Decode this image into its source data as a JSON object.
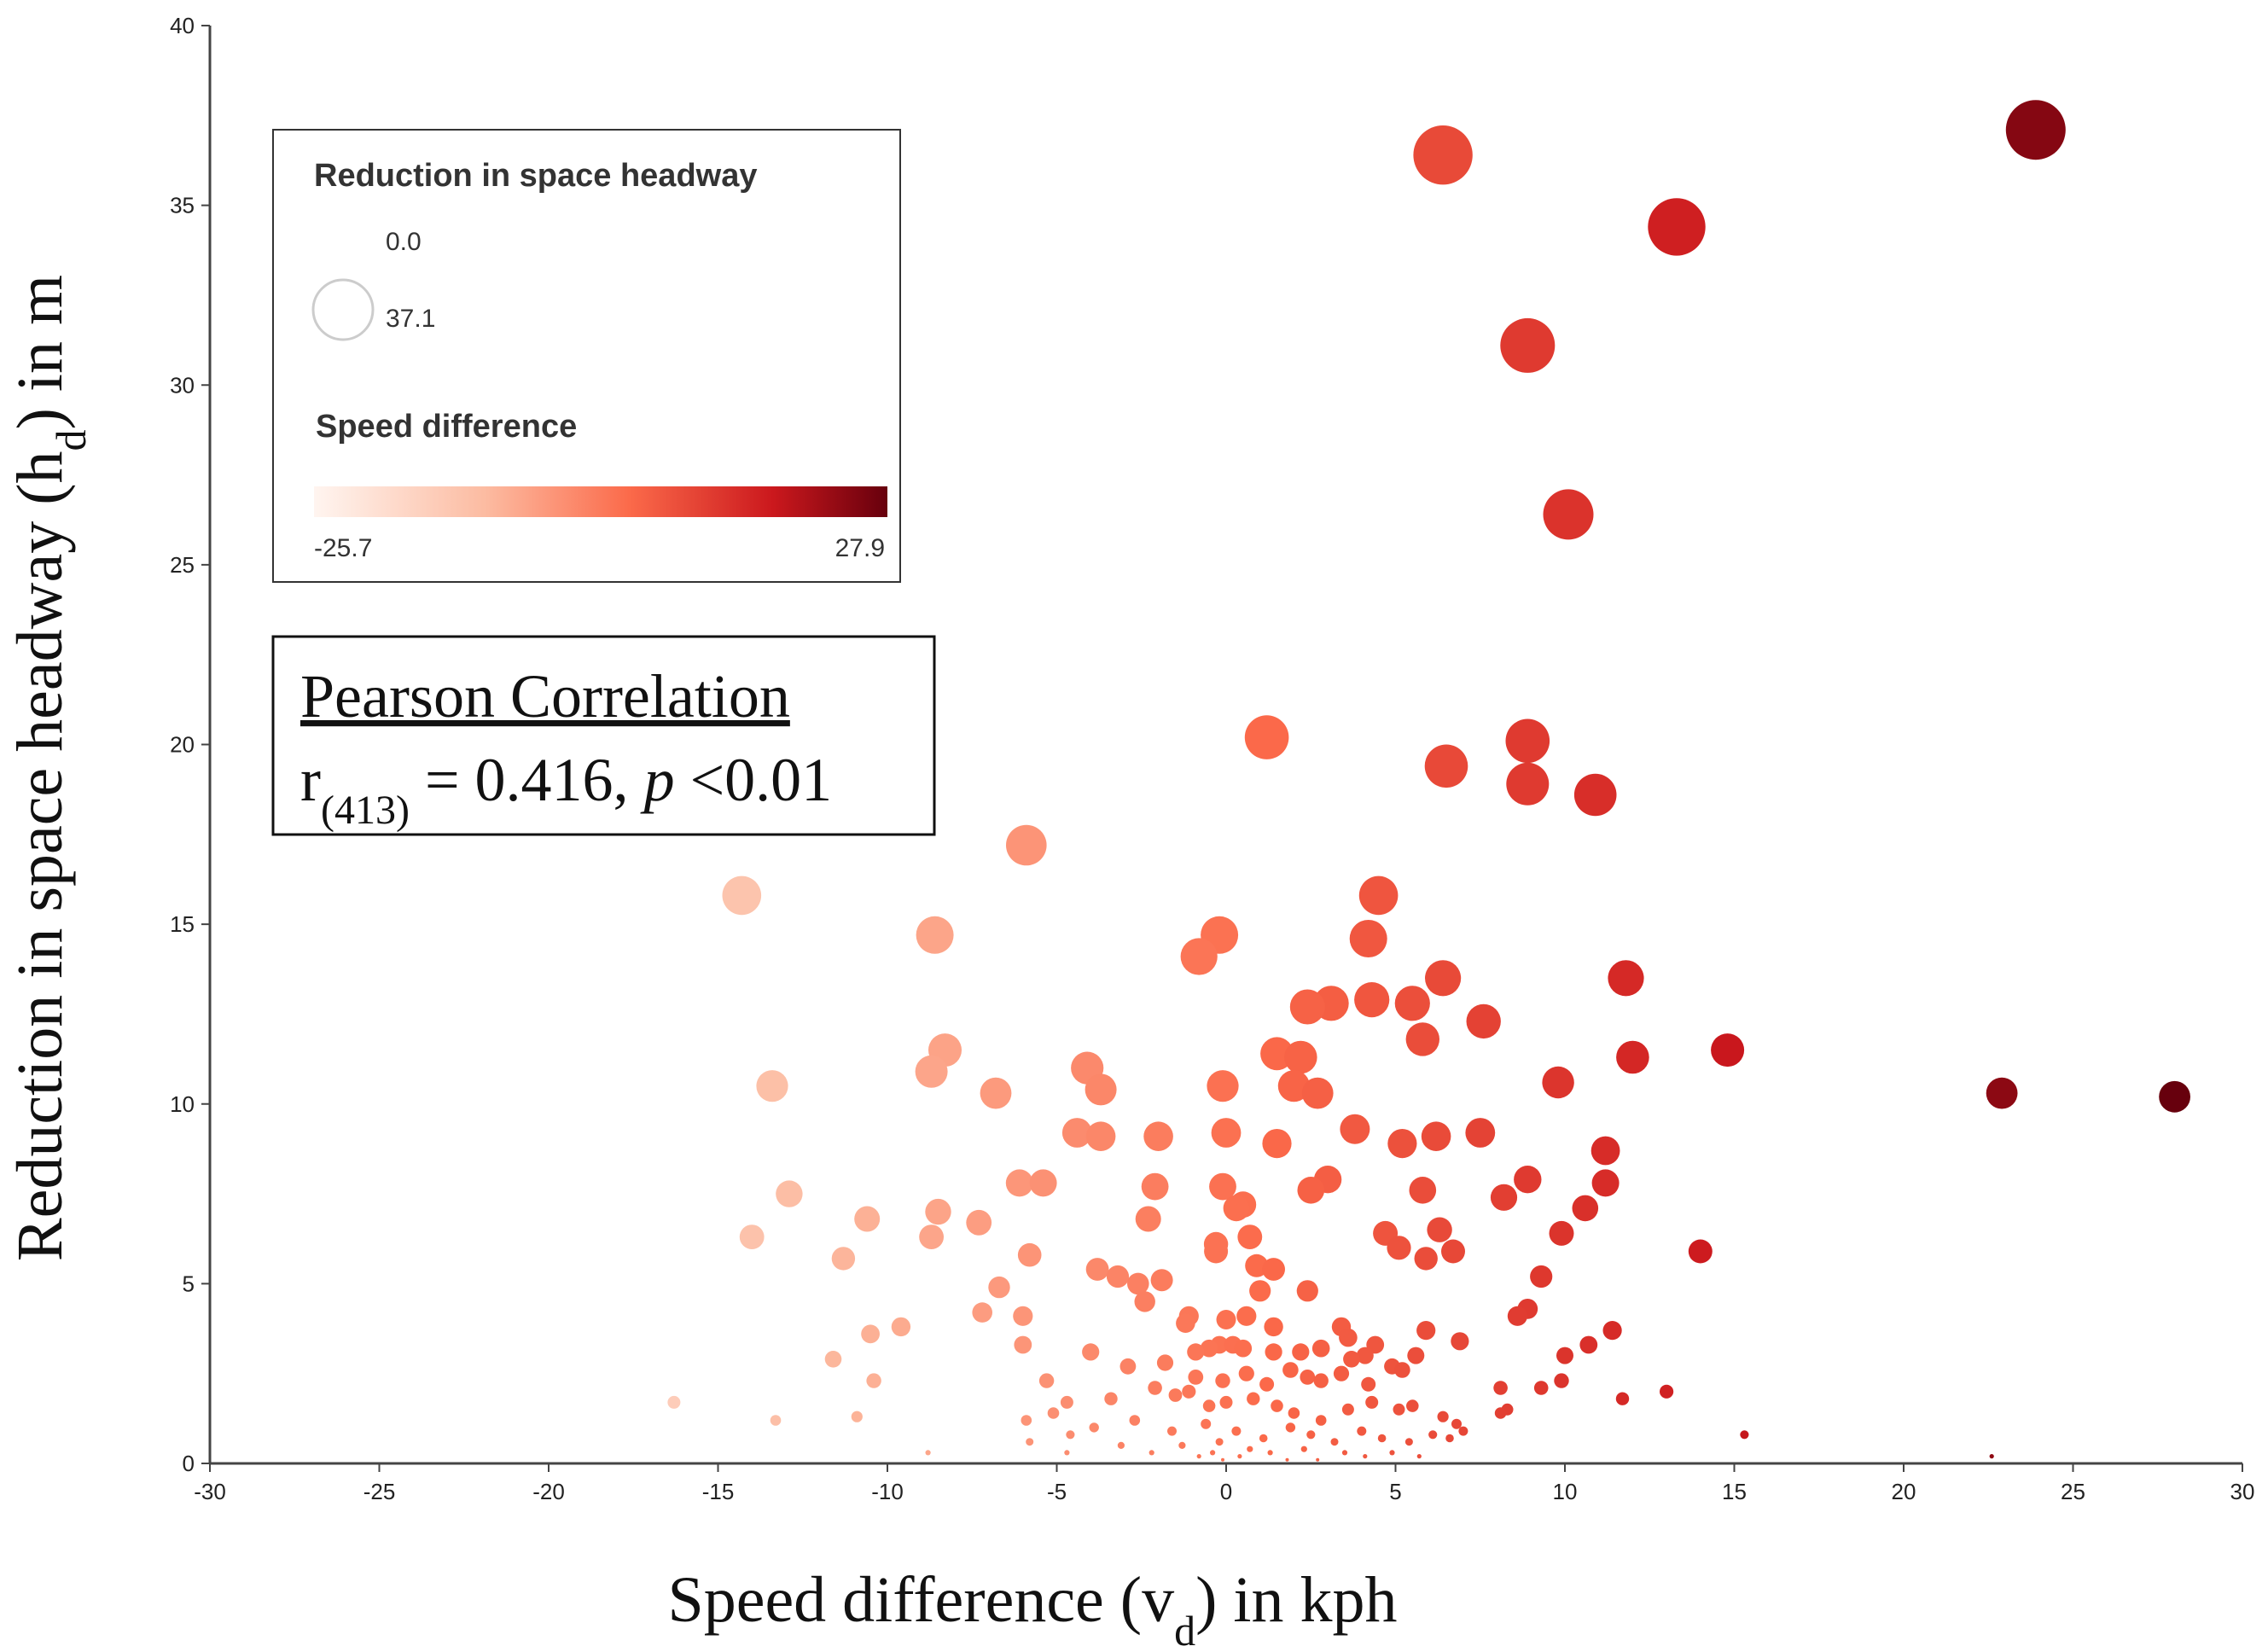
{
  "chart_data": {
    "type": "scatter",
    "xlabel": "Speed difference (v",
    "xlabel_sub": "d",
    "xlabel_suffix": ") in kph",
    "ylabel": "Reduction in space headway (h",
    "ylabel_sub": "d",
    "ylabel_suffix": ") in m",
    "xlim": [
      -30,
      30
    ],
    "ylim": [
      0,
      40
    ],
    "xticks": [
      -30,
      -25,
      -20,
      -15,
      -10,
      -5,
      0,
      5,
      10,
      15,
      20,
      25,
      30
    ],
    "yticks": [
      0,
      5,
      10,
      15,
      20,
      25,
      30,
      35,
      40
    ],
    "grid": false,
    "legend": {
      "size_title": "Reduction in space headway",
      "size_min_label": "0.0",
      "size_max_label": "37.1",
      "color_title": "Speed difference",
      "color_min_label": "-25.7",
      "color_max_label": "27.9",
      "color_min": -25.7,
      "color_max": 27.9,
      "size_max": 37.1,
      "colors": [
        "#fff5f0",
        "#fcbba1",
        "#fb6a4a",
        "#cb181d",
        "#67000d"
      ]
    },
    "annotation": {
      "title": "Pearson Correlation",
      "r_prefix": "r",
      "r_sub": "(413)",
      "r_value": " = 0.416, ",
      "p_label": "p",
      "p_value": " <0.01"
    },
    "points": [
      [
        23.9,
        37.1
      ],
      [
        6.4,
        36.4
      ],
      [
        13.3,
        34.4
      ],
      [
        8.9,
        31.1
      ],
      [
        10.1,
        26.4
      ],
      [
        1.2,
        20.2
      ],
      [
        6.5,
        19.4
      ],
      [
        8.9,
        20.1
      ],
      [
        8.9,
        18.9
      ],
      [
        10.9,
        18.6
      ],
      [
        -5.9,
        17.2
      ],
      [
        -14.3,
        15.8
      ],
      [
        -8.6,
        14.7
      ],
      [
        4.5,
        15.8
      ],
      [
        -0.2,
        14.7
      ],
      [
        -0.8,
        14.1
      ],
      [
        4.2,
        14.6
      ],
      [
        6.4,
        13.5
      ],
      [
        11.8,
        13.5
      ],
      [
        2.4,
        12.7
      ],
      [
        3.1,
        12.8
      ],
      [
        4.3,
        12.9
      ],
      [
        5.5,
        12.8
      ],
      [
        5.8,
        11.8
      ],
      [
        7.6,
        12.3
      ],
      [
        -8.3,
        11.5
      ],
      [
        -8.7,
        10.9
      ],
      [
        -13.4,
        10.5
      ],
      [
        -6.8,
        10.3
      ],
      [
        -4.1,
        11.0
      ],
      [
        -3.7,
        10.4
      ],
      [
        -0.1,
        10.5
      ],
      [
        1.5,
        11.4
      ],
      [
        2.2,
        11.3
      ],
      [
        2.0,
        10.5
      ],
      [
        2.7,
        10.3
      ],
      [
        9.8,
        10.6
      ],
      [
        12.0,
        11.3
      ],
      [
        14.8,
        11.5
      ],
      [
        22.9,
        10.3
      ],
      [
        28.0,
        10.2
      ],
      [
        -4.4,
        9.2
      ],
      [
        -3.7,
        9.1
      ],
      [
        -2.0,
        9.1
      ],
      [
        0.0,
        9.2
      ],
      [
        1.5,
        8.9
      ],
      [
        3.8,
        9.3
      ],
      [
        5.2,
        8.9
      ],
      [
        6.2,
        9.1
      ],
      [
        7.5,
        9.2
      ],
      [
        11.2,
        8.7
      ],
      [
        -12.9,
        7.5
      ],
      [
        -6.1,
        7.8
      ],
      [
        -5.4,
        7.8
      ],
      [
        -2.1,
        7.7
      ],
      [
        -0.1,
        7.7
      ],
      [
        0.3,
        7.1
      ],
      [
        0.5,
        7.2
      ],
      [
        2.5,
        7.6
      ],
      [
        3.0,
        7.9
      ],
      [
        5.8,
        7.6
      ],
      [
        8.2,
        7.4
      ],
      [
        8.9,
        7.9
      ],
      [
        11.2,
        7.8
      ],
      [
        -14.0,
        6.3
      ],
      [
        -10.6,
        6.8
      ],
      [
        -8.5,
        7.0
      ],
      [
        -8.7,
        6.3
      ],
      [
        -7.3,
        6.7
      ],
      [
        -5.8,
        5.8
      ],
      [
        -2.3,
        6.8
      ],
      [
        -0.3,
        6.1
      ],
      [
        -0.3,
        5.9
      ],
      [
        0.7,
        6.3
      ],
      [
        4.7,
        6.4
      ],
      [
        5.1,
        6.0
      ],
      [
        6.3,
        6.5
      ],
      [
        6.7,
        5.9
      ],
      [
        5.9,
        5.7
      ],
      [
        9.9,
        6.4
      ],
      [
        10.6,
        7.1
      ],
      [
        14.0,
        5.9
      ],
      [
        -11.3,
        5.7
      ],
      [
        -3.8,
        5.4
      ],
      [
        -3.2,
        5.2
      ],
      [
        -2.6,
        5.0
      ],
      [
        -1.9,
        5.1
      ],
      [
        0.9,
        5.5
      ],
      [
        1.4,
        5.4
      ],
      [
        1.0,
        4.8
      ],
      [
        2.4,
        4.8
      ],
      [
        9.3,
        5.2
      ],
      [
        -6.7,
        4.9
      ],
      [
        -2.4,
        4.5
      ],
      [
        -7.2,
        4.2
      ],
      [
        -6.0,
        4.1
      ],
      [
        -10.5,
        3.6
      ],
      [
        -9.6,
        3.8
      ],
      [
        -1.1,
        4.1
      ],
      [
        -1.2,
        3.9
      ],
      [
        0.0,
        4.0
      ],
      [
        0.6,
        4.1
      ],
      [
        1.4,
        3.8
      ],
      [
        3.4,
        3.8
      ],
      [
        3.6,
        3.5
      ],
      [
        4.4,
        3.3
      ],
      [
        5.9,
        3.7
      ],
      [
        6.9,
        3.4
      ],
      [
        8.6,
        4.1
      ],
      [
        8.9,
        4.3
      ],
      [
        11.4,
        3.7
      ],
      [
        10.7,
        3.3
      ],
      [
        -6.0,
        3.3
      ],
      [
        -4.0,
        3.1
      ],
      [
        -0.9,
        3.1
      ],
      [
        -0.5,
        3.2
      ],
      [
        -0.2,
        3.3
      ],
      [
        0.2,
        3.3
      ],
      [
        0.5,
        3.2
      ],
      [
        1.4,
        3.1
      ],
      [
        2.2,
        3.1
      ],
      [
        2.8,
        3.2
      ],
      [
        3.7,
        2.9
      ],
      [
        4.1,
        3.0
      ],
      [
        4.9,
        2.7
      ],
      [
        5.6,
        3.0
      ],
      [
        10.0,
        3.0
      ],
      [
        -11.6,
        2.9
      ],
      [
        -2.9,
        2.7
      ],
      [
        -1.8,
        2.8
      ],
      [
        -0.9,
        2.4
      ],
      [
        -0.1,
        2.3
      ],
      [
        0.6,
        2.5
      ],
      [
        1.2,
        2.2
      ],
      [
        1.9,
        2.6
      ],
      [
        2.4,
        2.4
      ],
      [
        2.8,
        2.3
      ],
      [
        3.4,
        2.5
      ],
      [
        4.2,
        2.2
      ],
      [
        5.2,
        2.6
      ],
      [
        8.1,
        2.1
      ],
      [
        9.3,
        2.1
      ],
      [
        9.9,
        2.3
      ],
      [
        -10.4,
        2.3
      ],
      [
        -5.3,
        2.3
      ],
      [
        -4.7,
        1.7
      ],
      [
        -3.4,
        1.8
      ],
      [
        -2.1,
        2.1
      ],
      [
        -1.5,
        1.9
      ],
      [
        -1.1,
        2.0
      ],
      [
        -0.5,
        1.6
      ],
      [
        0.0,
        1.7
      ],
      [
        0.8,
        1.8
      ],
      [
        1.5,
        1.6
      ],
      [
        2.0,
        1.4
      ],
      [
        2.8,
        1.2
      ],
      [
        3.6,
        1.5
      ],
      [
        4.3,
        1.7
      ],
      [
        5.1,
        1.5
      ],
      [
        5.5,
        1.6
      ],
      [
        6.4,
        1.3
      ],
      [
        6.8,
        1.1
      ],
      [
        8.3,
        1.5
      ],
      [
        11.7,
        1.8
      ],
      [
        13.0,
        2.0
      ],
      [
        -16.3,
        1.7
      ],
      [
        -13.3,
        1.2
      ],
      [
        -10.9,
        1.3
      ],
      [
        -5.9,
        1.2
      ],
      [
        -5.1,
        1.4
      ],
      [
        -4.6,
        0.8
      ],
      [
        -3.9,
        1.0
      ],
      [
        -2.7,
        1.2
      ],
      [
        -1.6,
        0.9
      ],
      [
        -0.6,
        1.1
      ],
      [
        -0.2,
        0.6
      ],
      [
        0.3,
        0.9
      ],
      [
        1.1,
        0.7
      ],
      [
        1.9,
        1.0
      ],
      [
        2.5,
        0.8
      ],
      [
        3.2,
        0.6
      ],
      [
        4.0,
        0.9
      ],
      [
        4.6,
        0.7
      ],
      [
        5.4,
        0.6
      ],
      [
        6.1,
        0.8
      ],
      [
        6.6,
        0.7
      ],
      [
        7.0,
        0.9
      ],
      [
        8.1,
        1.4
      ],
      [
        -8.8,
        0.3
      ],
      [
        -5.8,
        0.6
      ],
      [
        -4.7,
        0.3
      ],
      [
        -3.1,
        0.5
      ],
      [
        -2.2,
        0.3
      ],
      [
        -1.3,
        0.5
      ],
      [
        -0.8,
        0.2
      ],
      [
        -0.4,
        0.3
      ],
      [
        -0.1,
        0.1
      ],
      [
        0.4,
        0.2
      ],
      [
        0.7,
        0.4
      ],
      [
        1.3,
        0.3
      ],
      [
        1.8,
        0.1
      ],
      [
        2.3,
        0.4
      ],
      [
        2.7,
        0.1
      ],
      [
        3.5,
        0.3
      ],
      [
        4.1,
        0.2
      ],
      [
        4.9,
        0.3
      ],
      [
        5.7,
        0.2
      ],
      [
        15.3,
        0.8
      ],
      [
        22.6,
        0.2
      ]
    ]
  }
}
